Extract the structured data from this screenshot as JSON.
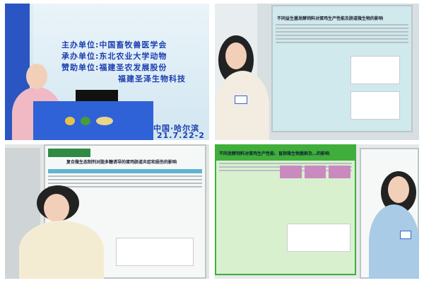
{
  "photos": [
    {
      "id": "speaker",
      "banner": {
        "lines": [
          "主办单位:中国畜牧兽医学会",
          "承办单位:东北农业大学动物",
          "赞助单位:福建圣农发展股份",
          "福建圣泽生物科技"
        ],
        "place": "中国·哈尔滨",
        "date": "21.7.22-2"
      }
    },
    {
      "id": "poster-1",
      "poster_title": "不同益生菌发酵饲料对蛋鸡生产性能及肠道微生物的影响"
    },
    {
      "id": "poster-2",
      "poster_title": "复合微生态制剂对脂多糖诱导的蛋鸡肠道炎症和损伤的影响"
    },
    {
      "id": "poster-3",
      "poster_title": "不同发酵饲料对蛋鸡生产性能、盲肠微生物菌群及…的影响"
    }
  ],
  "colors": {
    "banner_text": "#1c3fb0",
    "podium": "#2f62d6",
    "poster_green": "#3fae3a",
    "poster_teal": "#8ac7d0"
  }
}
